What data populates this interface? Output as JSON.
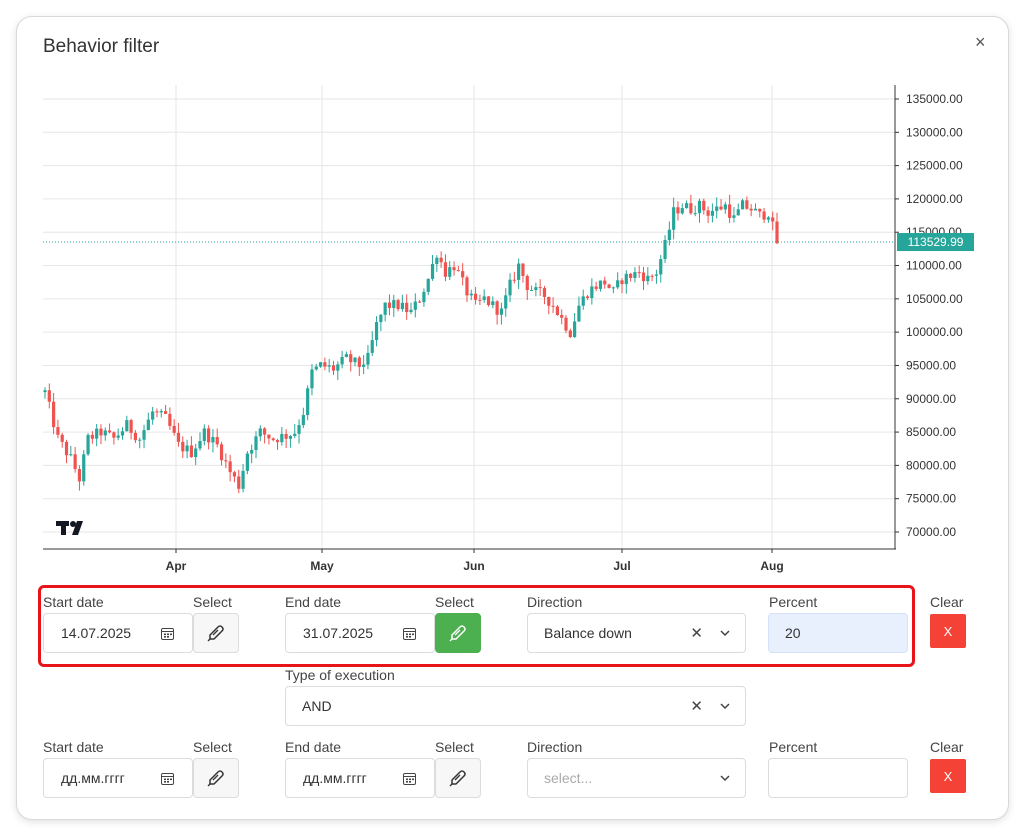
{
  "modal": {
    "title": "Behavior filter",
    "close_symbol": "×"
  },
  "chart_data": {
    "type": "candlestick",
    "x_labels": [
      "Apr",
      "May",
      "Jun",
      "Jul",
      "Aug"
    ],
    "y_ticks": [
      "135000.00",
      "130000.00",
      "125000.00",
      "120000.00",
      "115000.00",
      "110000.00",
      "105000.00",
      "100000.00",
      "95000.00",
      "90000.00",
      "85000.00",
      "80000.00",
      "75000.00",
      "70000.00"
    ],
    "y_values": [
      135000,
      130000,
      125000,
      120000,
      115000,
      110000,
      105000,
      100000,
      95000,
      90000,
      85000,
      80000,
      75000,
      70000
    ],
    "ylim": [
      67500,
      137500
    ],
    "last_price_label": "113529.99",
    "last_price": 113530,
    "up_color": "#26a69a",
    "down_color": "#ef5350",
    "close_path": [
      [
        0,
        91000
      ],
      [
        3,
        84000
      ],
      [
        6,
        81000
      ],
      [
        8,
        78000
      ],
      [
        10,
        84000
      ],
      [
        13,
        85000
      ],
      [
        16,
        84000
      ],
      [
        19,
        86000
      ],
      [
        22,
        84000
      ],
      [
        25,
        88000
      ],
      [
        28,
        87000
      ],
      [
        31,
        83000
      ],
      [
        34,
        82000
      ],
      [
        37,
        85000
      ],
      [
        40,
        83000
      ],
      [
        43,
        79000
      ],
      [
        45,
        77000
      ],
      [
        47,
        82000
      ],
      [
        50,
        85000
      ],
      [
        53,
        84000
      ],
      [
        56,
        84500
      ],
      [
        58,
        85000
      ],
      [
        60,
        88000
      ],
      [
        62,
        94000
      ],
      [
        64,
        95000
      ],
      [
        67,
        94500
      ],
      [
        70,
        96000
      ],
      [
        73,
        95000
      ],
      [
        75,
        96000
      ],
      [
        77,
        101000
      ],
      [
        79,
        104000
      ],
      [
        82,
        104000
      ],
      [
        85,
        103000
      ],
      [
        87,
        105000
      ],
      [
        89,
        108000
      ],
      [
        91,
        112000
      ],
      [
        93,
        109000
      ],
      [
        95,
        110000
      ],
      [
        98,
        106000
      ],
      [
        100,
        104000
      ],
      [
        102,
        105000
      ],
      [
        104,
        104000
      ],
      [
        106,
        103000
      ],
      [
        108,
        107000
      ],
      [
        110,
        110000
      ],
      [
        112,
        107000
      ],
      [
        114,
        106000
      ],
      [
        116,
        105500
      ],
      [
        118,
        104000
      ],
      [
        120,
        102000
      ],
      [
        122,
        100000
      ],
      [
        124,
        104000
      ],
      [
        126,
        106000
      ],
      [
        128,
        107000
      ],
      [
        130,
        107500
      ],
      [
        132,
        106000
      ],
      [
        134,
        108000
      ],
      [
        136,
        108500
      ],
      [
        138,
        109000
      ],
      [
        140,
        108000
      ],
      [
        142,
        109000
      ],
      [
        144,
        113000
      ],
      [
        146,
        118000
      ],
      [
        148,
        119000
      ],
      [
        150,
        118500
      ],
      [
        152,
        119000
      ],
      [
        154,
        118000
      ],
      [
        156,
        118500
      ],
      [
        158,
        119000
      ],
      [
        160,
        117000
      ],
      [
        162,
        119000
      ],
      [
        164,
        118500
      ],
      [
        166,
        117500
      ],
      [
        168,
        118000
      ],
      [
        170,
        113500
      ]
    ]
  },
  "row1": {
    "start_label": "Start date",
    "start_value": "14.07.2025",
    "select1_label": "Select",
    "end_label": "End date",
    "end_value": "31.07.2025",
    "select2_label": "Select",
    "direction_label": "Direction",
    "direction_value": "Balance down",
    "percent_label": "Percent",
    "percent_value": "20",
    "clear_label": "Clear",
    "clear_button": "X"
  },
  "type_execution": {
    "label": "Type of execution",
    "value": "AND"
  },
  "row2": {
    "start_label": "Start date",
    "start_placeholder": "дд.мм.гггг",
    "select1_label": "Select",
    "end_label": "End date",
    "end_placeholder": "дд.мм.гггг",
    "select2_label": "Select",
    "direction_label": "Direction",
    "direction_placeholder": "select...",
    "percent_label": "Percent",
    "percent_value": "",
    "clear_label": "Clear",
    "clear_button": "X"
  },
  "icons": {
    "close": "close-icon",
    "calendar": "calendar-icon",
    "picker": "pencil-brush-icon",
    "clear_x": "clear-icon",
    "chevron": "chevron-down-icon",
    "logo": "tradingview-logo"
  }
}
